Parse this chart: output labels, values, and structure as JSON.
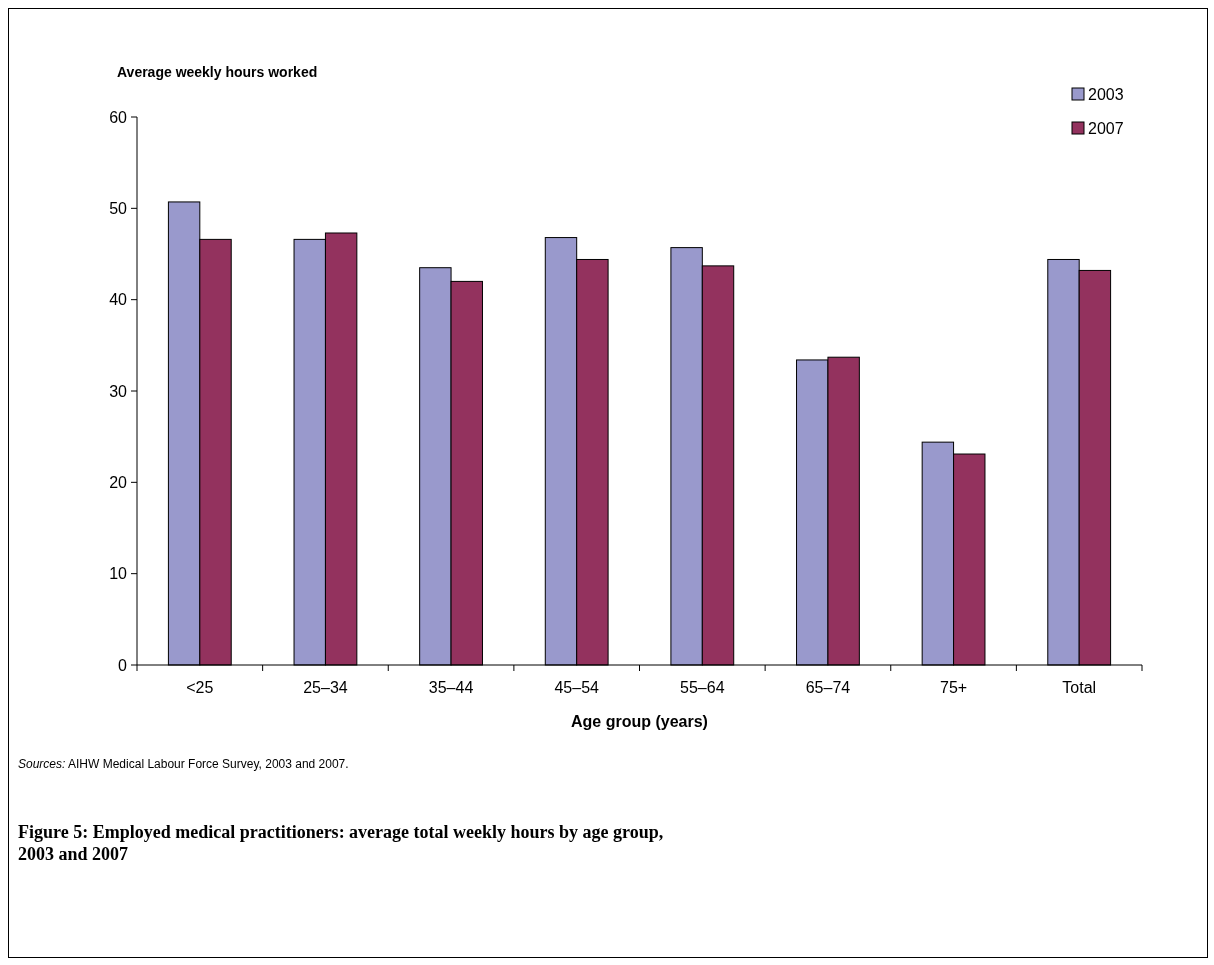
{
  "chart_data": {
    "type": "bar",
    "title": "Figure 5: Employed medical practitioners: average total weekly hours by age group, 2003 and 2007",
    "ylabel": "Average weekly hours worked",
    "xlabel": "Age group (years)",
    "categories": [
      "<25",
      "25–34",
      "35–44",
      "45–54",
      "55–64",
      "65–74",
      "75+",
      "Total"
    ],
    "series": [
      {
        "name": "2003",
        "color": "#9999cc",
        "values": [
          50.7,
          46.6,
          43.5,
          46.8,
          45.7,
          33.4,
          24.4,
          44.4
        ]
      },
      {
        "name": "2007",
        "color": "#93325e",
        "values": [
          46.6,
          47.3,
          42.0,
          44.4,
          43.7,
          33.7,
          23.1,
          43.2
        ]
      }
    ],
    "ylim": [
      0,
      60
    ],
    "yticks": [
      0,
      10,
      20,
      30,
      40,
      50,
      60
    ],
    "legend": "top right",
    "annotations": [
      "Sources: AIHW Medical Labour Force Survey, 2003 and 2007."
    ]
  }
}
